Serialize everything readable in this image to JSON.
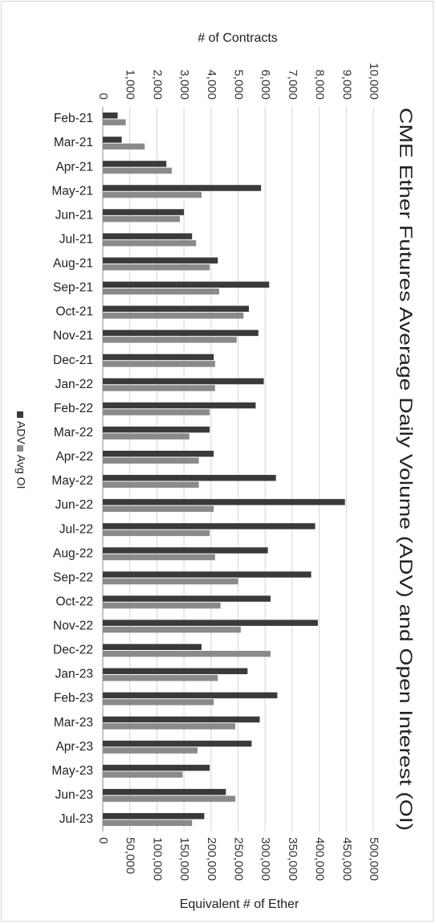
{
  "chart_data": {
    "type": "bar",
    "orientation": "horizontal",
    "title": "CME Ether Futures Average Daily Volume (ADV) and Open Interest (OI)",
    "xlabel_top": "# of Contracts",
    "xlabel_bottom": "Equivalent # of Ether",
    "xlim_top": [
      0,
      10000
    ],
    "xlim_bottom": [
      0,
      500000
    ],
    "ticks_top": [
      "0",
      "1,000",
      "2,000",
      "3,000",
      "4,000",
      "5,000",
      "6,000",
      "7,000",
      "8,000",
      "9,000",
      "10,000"
    ],
    "ticks_bottom": [
      "0",
      "50,000",
      "100,000",
      "150,000",
      "200,000",
      "250,000",
      "300,000",
      "350,000",
      "400,000",
      "450,000",
      "500,000"
    ],
    "grid": true,
    "categories": [
      "Feb-21",
      "Mar-21",
      "Apr-21",
      "May-21",
      "Jun-21",
      "Jul-21",
      "Aug-21",
      "Sep-21",
      "Oct-21",
      "Nov-21",
      "Dec-21",
      "Jan-22",
      "Feb-22",
      "Mar-22",
      "Apr-22",
      "May-22",
      "Jun-22",
      "Jul-22",
      "Aug-22",
      "Sep-22",
      "Oct-22",
      "Nov-22",
      "Dec-22",
      "Jan-23",
      "Feb-23",
      "Mar-23",
      "Apr-23",
      "May-23",
      "Jun-23",
      "Jul-23"
    ],
    "series": [
      {
        "name": "ADV",
        "color": "#3a3a3a",
        "values": [
          550,
          700,
          2350,
          5850,
          3000,
          3300,
          4250,
          6150,
          5400,
          5750,
          4100,
          5950,
          5650,
          3950,
          4100,
          6400,
          8950,
          7850,
          6100,
          7700,
          6200,
          7950,
          3650,
          5350,
          6450,
          5800,
          5500,
          3950,
          4550,
          3750
        ]
      },
      {
        "name": "Avg OI",
        "color": "#8a8a8a",
        "values": [
          850,
          1550,
          2550,
          3650,
          2850,
          3450,
          3950,
          4300,
          5200,
          4950,
          4150,
          4150,
          3950,
          3200,
          3550,
          3550,
          4100,
          3950,
          4150,
          5000,
          4350,
          5100,
          6200,
          4250,
          4100,
          4900,
          3500,
          2950,
          4900,
          3300
        ]
      }
    ],
    "legend_position": "left, rotated"
  }
}
